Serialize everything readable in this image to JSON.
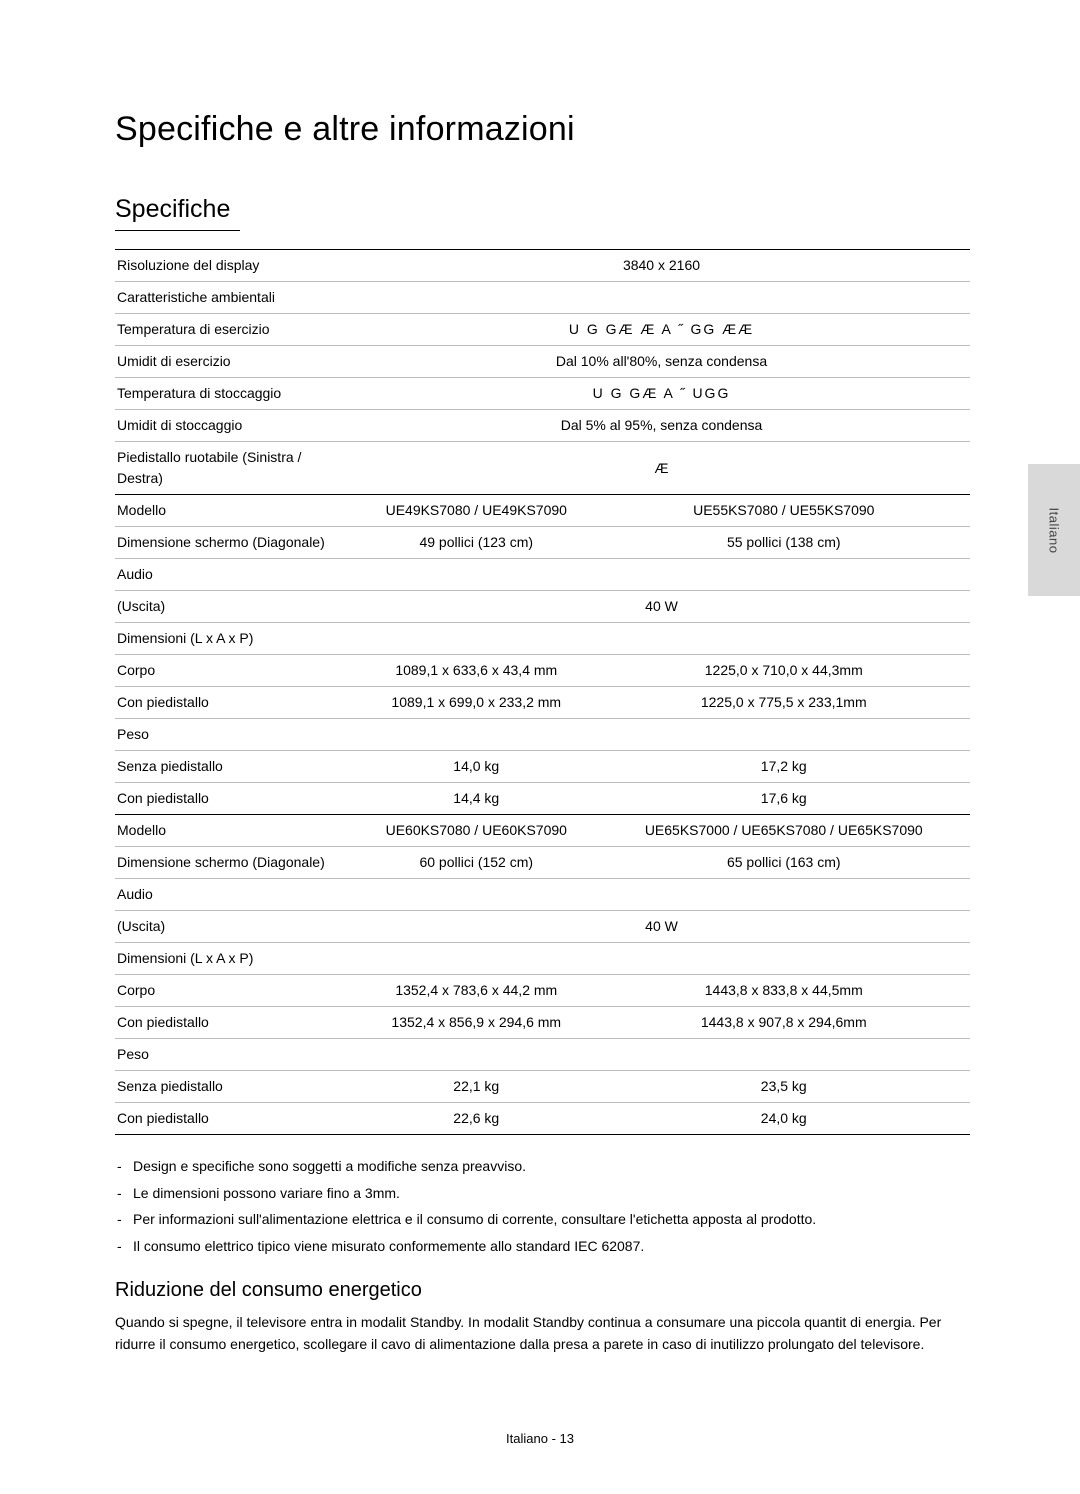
{
  "main_title": "Specifiche e altre informazioni",
  "section_title": "Specifiche",
  "side_tab": "Italiano",
  "footer": "Italiano - 13",
  "rows": {
    "r0_l": "Risoluzione del display",
    "r0_v": "3840 x 2160",
    "r1_l": "Caratteristiche ambientali",
    "r2_l": "Temperatura di esercizio",
    "r2_v": "U G   GÆ  Æ   A  ˝ GG  ÆÆ",
    "r3_l": "Umidit  di esercizio",
    "r3_v": "Dal 10% all'80%, senza condensa",
    "r4_l": "Temperatura di stoccaggio",
    "r4_v": "U G     GÆ     A  ˝ UGG",
    "r5_l": "Umidit  di stoccaggio",
    "r5_v": "Dal 5% al 95%, senza condensa",
    "r6_l": "Piedistallo ruotabile (Sinistra / Destra)",
    "r6_v": "Æ",
    "r7_l": "Modello",
    "r7_a": "UE49KS7080 / UE49KS7090",
    "r7_b": "UE55KS7080 / UE55KS7090",
    "r8_l": "Dimensione schermo (Diagonale)",
    "r8_a": "49 pollici (123 cm)",
    "r8_b": "55 pollici (138 cm)",
    "r9_l": "Audio",
    "r10_l": "(Uscita)",
    "r10_v": "40 W",
    "r11_l": "Dimensioni (L x A x P)",
    "r12_l": "Corpo",
    "r12_a": "1089,1 x 633,6 x 43,4 mm",
    "r12_b": "1225,0 x 710,0 x 44,3mm",
    "r13_l": "Con piedistallo",
    "r13_a": "1089,1 x 699,0 x 233,2 mm",
    "r13_b": "1225,0 x 775,5 x 233,1mm",
    "r14_l": "Peso",
    "r15_l": "Senza piedistallo",
    "r15_a": "14,0 kg",
    "r15_b": "17,2 kg",
    "r16_l": "Con piedistallo",
    "r16_a": "14,4 kg",
    "r16_b": "17,6 kg",
    "r17_l": "Modello",
    "r17_a": "UE60KS7080 / UE60KS7090",
    "r17_b": "UE65KS7000 / UE65KS7080 / UE65KS7090",
    "r18_l": "Dimensione schermo (Diagonale)",
    "r18_a": "60 pollici (152 cm)",
    "r18_b": "65 pollici (163 cm)",
    "r19_l": "Audio",
    "r20_l": "(Uscita)",
    "r20_v": "40 W",
    "r21_l": "Dimensioni (L x A x P)",
    "r22_l": "Corpo",
    "r22_a": "1352,4 x 783,6 x 44,2 mm",
    "r22_b": "1443,8 x 833,8 x 44,5mm",
    "r23_l": "Con piedistallo",
    "r23_a": "1352,4 x 856,9 x 294,6 mm",
    "r23_b": "1443,8 x 907,8 x 294,6mm",
    "r24_l": "Peso",
    "r25_l": "Senza piedistallo",
    "r25_a": "22,1 kg",
    "r25_b": "23,5 kg",
    "r26_l": "Con piedistallo",
    "r26_a": "22,6 kg",
    "r26_b": "24,0 kg"
  },
  "notes": [
    "Design e specifiche sono soggetti a modifiche senza preavviso.",
    "Le dimensioni possono variare fino a 3mm.",
    "Per informazioni sull'alimentazione elettrica e il consumo di corrente, consultare l'etichetta apposta al prodotto.",
    "Il consumo elettrico tipico viene misurato conformemente allo standard IEC 62087."
  ],
  "subsection_title": "Riduzione del consumo energetico",
  "paragraph": "Quando si spegne, il televisore entra in modalit  Standby. In modalit  Standby continua a consumare una piccola quantit  di energia. Per ridurre il consumo energetico, scollegare il cavo di alimentazione dalla presa a parete in caso di inutilizzo prolungato del televisore."
}
